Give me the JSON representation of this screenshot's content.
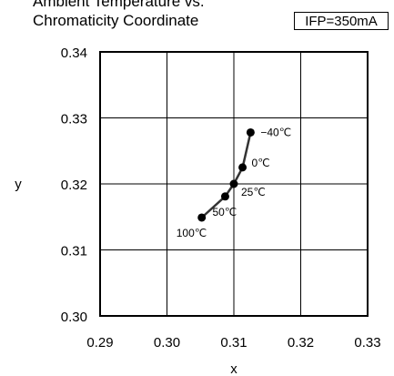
{
  "chart_data": {
    "type": "line",
    "title": "Ambient Temperature vs. Chromaticity Coordinate",
    "title_line1": "Ambient Temperature vs.",
    "title_line2": "Chromaticity Coordinate",
    "condition": "IFP=350mA",
    "xlabel": "x",
    "ylabel": "y",
    "xlim": [
      0.29,
      0.33
    ],
    "ylim": [
      0.3,
      0.34
    ],
    "x_ticks": [
      "0.29",
      "0.30",
      "0.31",
      "0.32",
      "0.33"
    ],
    "y_ticks": [
      "0.34",
      "0.33",
      "0.32",
      "0.31",
      "0.30"
    ],
    "grid": true,
    "series": [
      {
        "points": [
          {
            "label": "100℃",
            "x": 0.3052,
            "y": 0.3149
          },
          {
            "label": "50℃",
            "x": 0.3087,
            "y": 0.3181
          },
          {
            "label": "25℃",
            "x": 0.31,
            "y": 0.32
          },
          {
            "label": "0℃",
            "x": 0.3113,
            "y": 0.3225
          },
          {
            "label": "−40℃",
            "x": 0.3125,
            "y": 0.3278
          }
        ]
      }
    ]
  }
}
